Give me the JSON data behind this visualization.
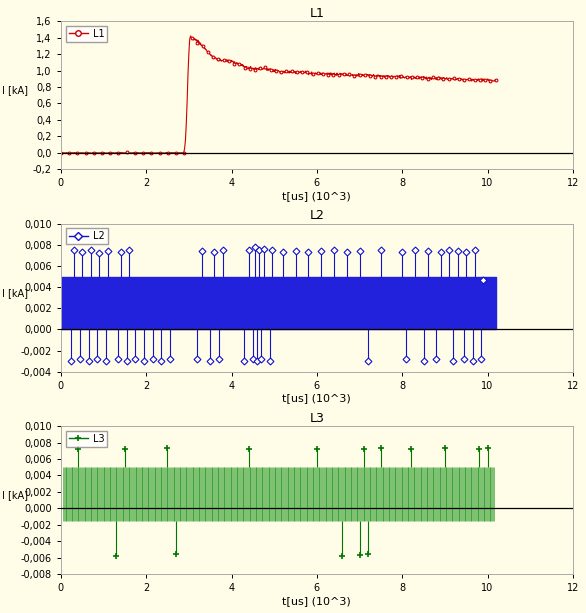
{
  "bg_color": "#FFFCE8",
  "plot_bg_color": "#FFFCE8",
  "title1": "L1",
  "title2": "L2",
  "title3": "L3",
  "xlabel": "t[us] (10^3)",
  "ylabel": "I [kA]",
  "xlim": [
    0,
    12
  ],
  "xticks": [
    0,
    2,
    4,
    6,
    8,
    10,
    12
  ],
  "color1": "#CC0000",
  "color2": "#1111CC",
  "color3": "#007700",
  "fill2_color": "#2222DD",
  "fill3_color": "#008800",
  "ylim1": [
    -0.2,
    1.6
  ],
  "yticks1": [
    -0.2,
    0.0,
    0.2,
    0.4,
    0.6,
    0.8,
    1.0,
    1.2,
    1.4,
    1.6
  ],
  "ylim2": [
    -0.004,
    0.01
  ],
  "yticks2": [
    -0.004,
    -0.002,
    0.0,
    0.002,
    0.004,
    0.006,
    0.008,
    0.01
  ],
  "ylim3": [
    -0.008,
    0.01
  ],
  "yticks3": [
    -0.008,
    -0.006,
    -0.004,
    -0.002,
    0.0,
    0.002,
    0.004,
    0.006,
    0.008,
    0.01
  ],
  "ytick_labels1": [
    "-0,2",
    "0,0",
    "0,2",
    "0,4",
    "0,6",
    "0,8",
    "1,0",
    "1,2",
    "1,4",
    "1,6"
  ],
  "ytick_labels2": [
    "-0,004",
    "-0,002",
    "0,000",
    "0,002",
    "0,004",
    "0,006",
    "0,008",
    "0,010"
  ],
  "ytick_labels3": [
    "-0,008",
    "-0,006",
    "-0,004",
    "-0,002",
    "0,000",
    "0,002",
    "0,004",
    "0,006",
    "0,008",
    "0,010"
  ]
}
